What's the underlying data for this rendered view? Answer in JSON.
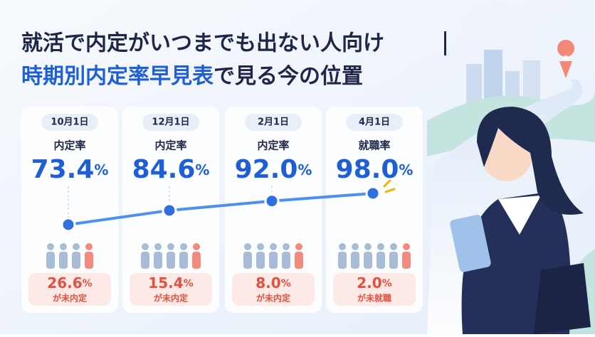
{
  "title": {
    "line1": "就活で内定がいつまでも出ない人向け",
    "line2_highlight": "時期別内定率早見表",
    "line2_rest": "で見る今の位置"
  },
  "cards": [
    {
      "date": "10月1日",
      "label": "内定率",
      "rate": "73.4",
      "unit": "%",
      "rest": "26.6",
      "rest_unit": "%",
      "rest_label": "が未内定"
    },
    {
      "date": "12月1日",
      "label": "内定率",
      "rate": "84.6",
      "unit": "%",
      "rest": "15.4",
      "rest_unit": "%",
      "rest_label": "が未内定"
    },
    {
      "date": "2月1日",
      "label": "内定率",
      "rate": "92.0",
      "unit": "%",
      "rest": "8.0",
      "rest_unit": "%",
      "rest_label": "が未内定"
    },
    {
      "date": "4月1日",
      "label": "就職率",
      "rate": "98.0",
      "unit": "%",
      "rest": "2.0",
      "rest_unit": "%",
      "rest_label": "が未就職"
    }
  ]
}
